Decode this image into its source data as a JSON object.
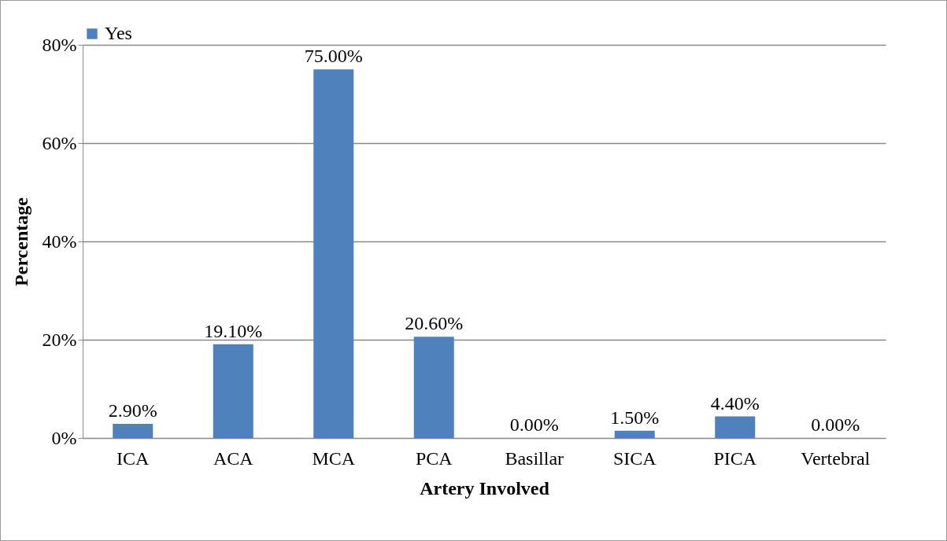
{
  "chart_data": {
    "type": "bar",
    "xlabel": "Artery Involved",
    "ylabel": "Percentage",
    "categories": [
      "ICA",
      "ACA",
      "MCA",
      "PCA",
      "Basillar",
      "SICA",
      "PICA",
      "Vertebral"
    ],
    "series": [
      {
        "name": "Yes",
        "color": "#4f81bd",
        "values": [
          2.9,
          19.1,
          75,
          20.6,
          0,
          1.5,
          4.4,
          0
        ],
        "value_labels": [
          "2.90%",
          "19.10%",
          "75.00%",
          "20.60%",
          "0.00%",
          "1.50%",
          "4.40%",
          "0.00%"
        ]
      }
    ],
    "ylim": [
      0,
      80
    ],
    "yticks": [
      {
        "value": 0,
        "label": "0%"
      },
      {
        "value": 20,
        "label": "20%"
      },
      {
        "value": 40,
        "label": "40%"
      },
      {
        "value": 60,
        "label": "60%"
      },
      {
        "value": 80,
        "label": "80%"
      }
    ],
    "grid": "y",
    "legend": "top"
  }
}
